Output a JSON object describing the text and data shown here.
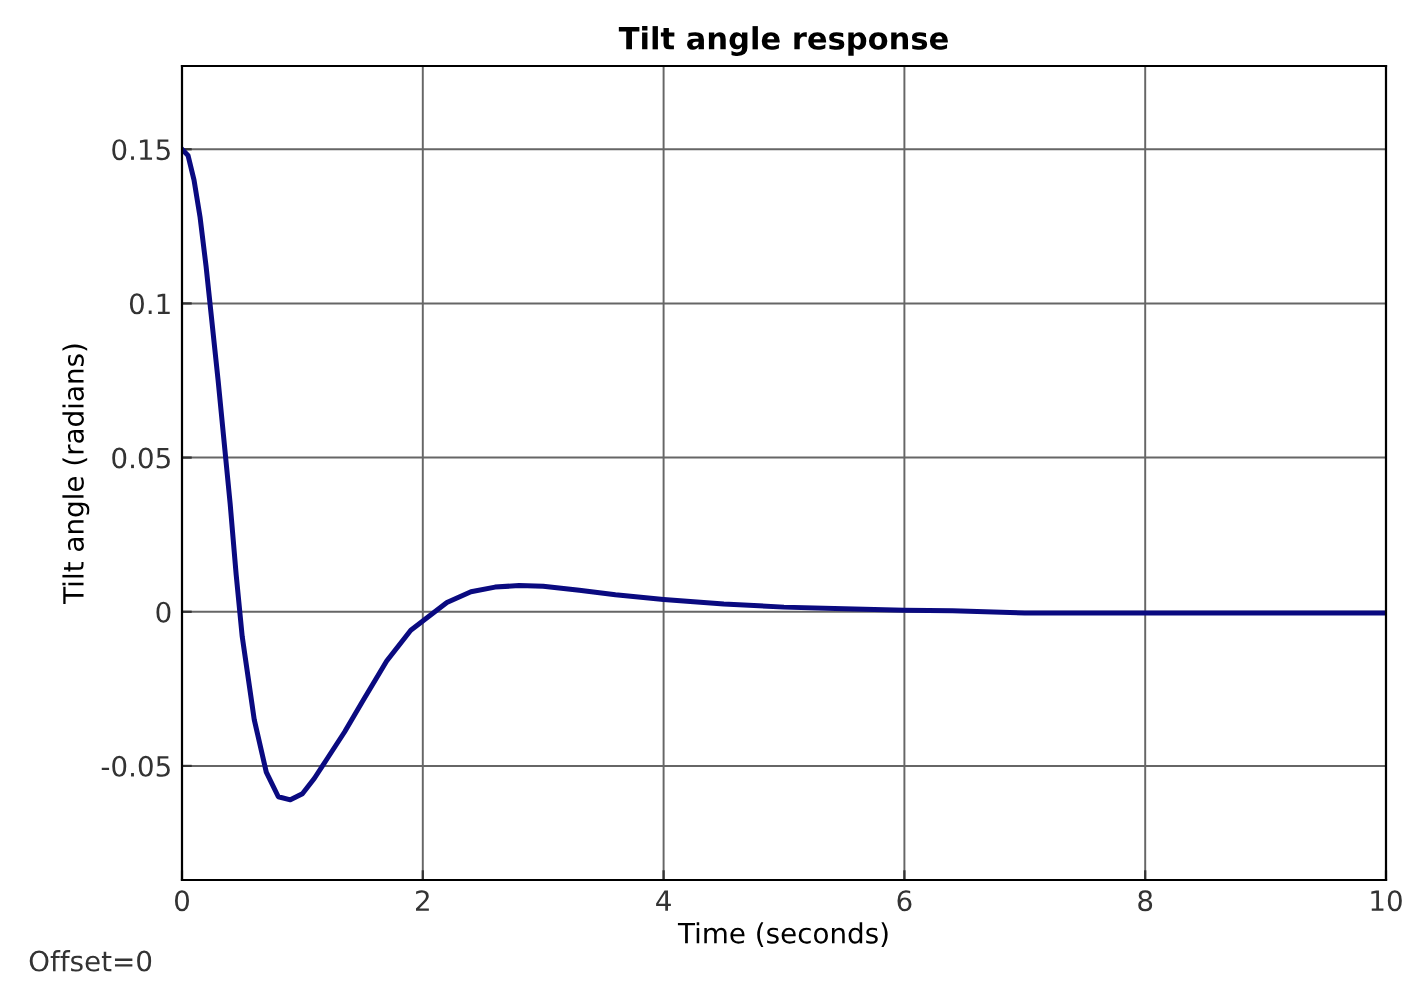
{
  "chart_data": {
    "type": "line",
    "title": "Tilt angle response",
    "xlabel": "Time (seconds)",
    "ylabel": "Tilt angle (radians)",
    "annotations": [
      "Offset=0"
    ],
    "series": [
      {
        "color": "#0a0a80",
        "x": [
          0,
          0.05,
          0.1,
          0.15,
          0.2,
          0.3,
          0.4,
          0.45,
          0.5,
          0.6,
          0.7,
          0.8,
          0.9,
          1.0,
          1.1,
          1.2,
          1.35,
          1.5,
          1.7,
          1.9,
          2.0,
          2.2,
          2.4,
          2.6,
          2.8,
          3.0,
          3.3,
          3.6,
          4.0,
          4.5,
          5.0,
          5.5,
          6.0,
          6.4,
          7,
          8,
          9,
          10
        ],
        "values": [
          0.15,
          0.148,
          0.14,
          0.128,
          0.112,
          0.075,
          0.035,
          0.012,
          -0.008,
          -0.035,
          -0.052,
          -0.06,
          -0.061,
          -0.059,
          -0.054,
          -0.048,
          -0.039,
          -0.029,
          -0.016,
          -0.006,
          -0.003,
          0.003,
          0.0065,
          0.008,
          0.0085,
          0.0083,
          0.007,
          0.0055,
          0.004,
          0.0025,
          0.0015,
          0.001,
          0.0005,
          0.0003,
          -0.0004,
          -0.0004,
          -0.0004,
          -0.0004
        ]
      }
    ],
    "xlim": [
      0,
      10
    ],
    "xticks": [
      0,
      2,
      4,
      6,
      8,
      10
    ],
    "ylim": [
      -0.087,
      0.177
    ],
    "yticks": [
      -0.05,
      0,
      0.05,
      0.1,
      0.15
    ],
    "grid": true,
    "line_style": "solid",
    "marker": "none"
  }
}
